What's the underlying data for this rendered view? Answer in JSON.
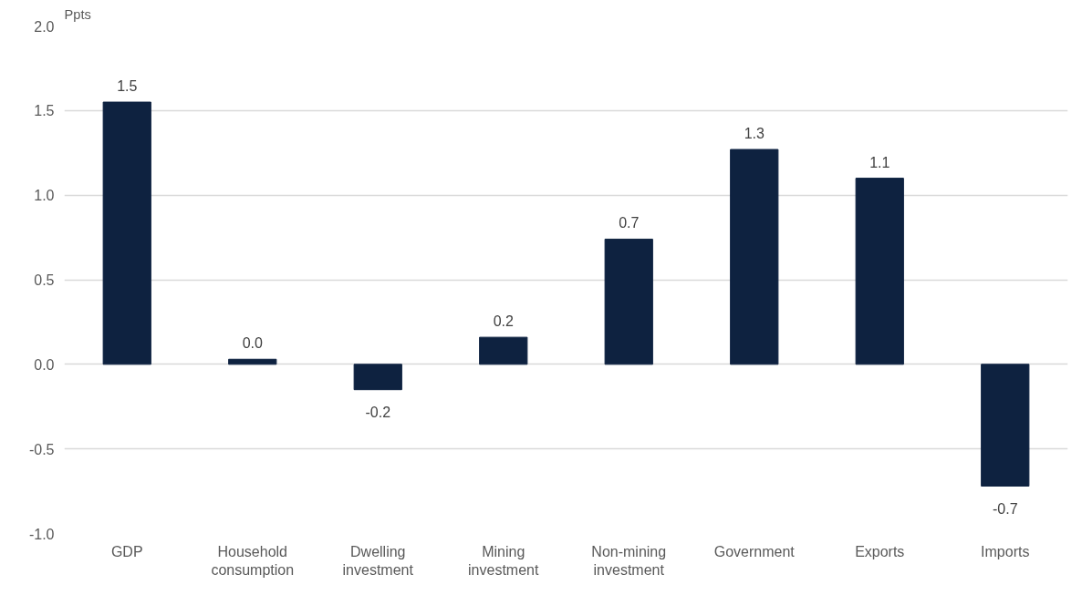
{
  "chart_data": {
    "type": "bar",
    "ylabel": "Ppts",
    "categories": [
      "GDP",
      "Household consumption",
      "Dwelling investment",
      "Mining investment",
      "Non-mining investment",
      "Government",
      "Exports",
      "Imports"
    ],
    "values": [
      1.55,
      0.03,
      -0.15,
      0.16,
      0.74,
      1.27,
      1.1,
      -0.72
    ],
    "value_labels": [
      "1.5",
      "0.0",
      "-0.2",
      "0.2",
      "0.7",
      "1.3",
      "1.1",
      "-0.7"
    ],
    "color": "#0e2240",
    "ylim": [
      -1.0,
      2.0
    ],
    "yticks": [
      {
        "value": -1.0,
        "label": "-1.0"
      },
      {
        "value": -0.5,
        "label": "-0.5"
      },
      {
        "value": 0.0,
        "label": "0.0"
      },
      {
        "value": 0.5,
        "label": "0.5"
      },
      {
        "value": 1.0,
        "label": "1.0"
      },
      {
        "value": 1.5,
        "label": "1.5"
      },
      {
        "value": 2.0,
        "label": "2.0"
      }
    ],
    "grid": "y"
  }
}
